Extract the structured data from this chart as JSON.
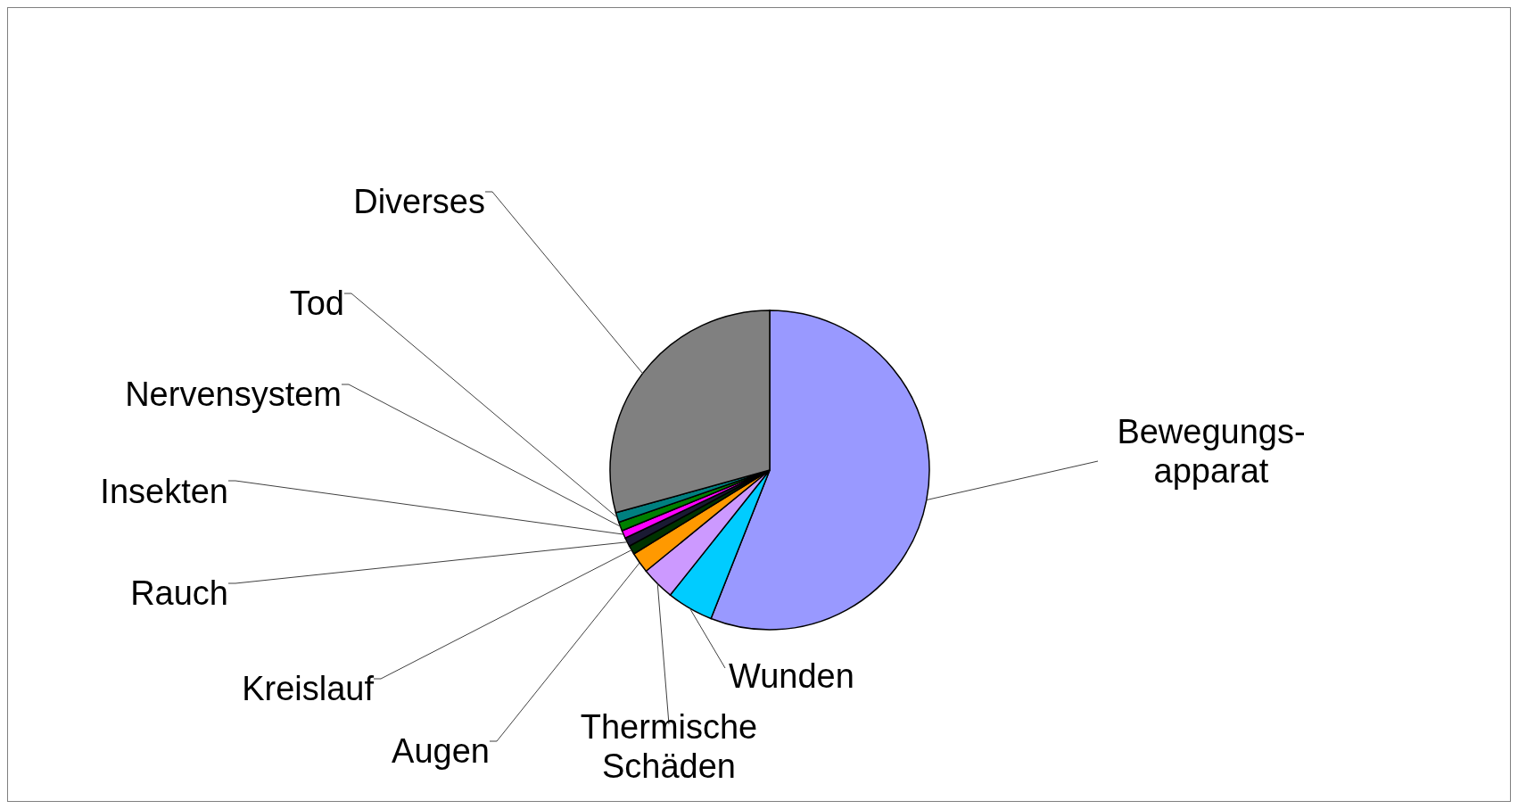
{
  "chart_data": {
    "type": "pie",
    "categories": [
      "Bewegungs-\napparat",
      "Wunden",
      "Thermische\nSchäden",
      "Augen",
      "Kreislauf",
      "Rauch",
      "Insekten",
      "Nervensystem",
      "Tod",
      "Diverses"
    ],
    "values": [
      56,
      4.7,
      3.4,
      2.1,
      0.9,
      0.9,
      0.8,
      0.9,
      1,
      29.3
    ],
    "colors": [
      "#9999ff",
      "#00ccff",
      "#cc99ff",
      "#ff9900",
      "#003300",
      "#1a1a33",
      "#ff00ff",
      "#008000",
      "#008080",
      "#808080"
    ]
  }
}
